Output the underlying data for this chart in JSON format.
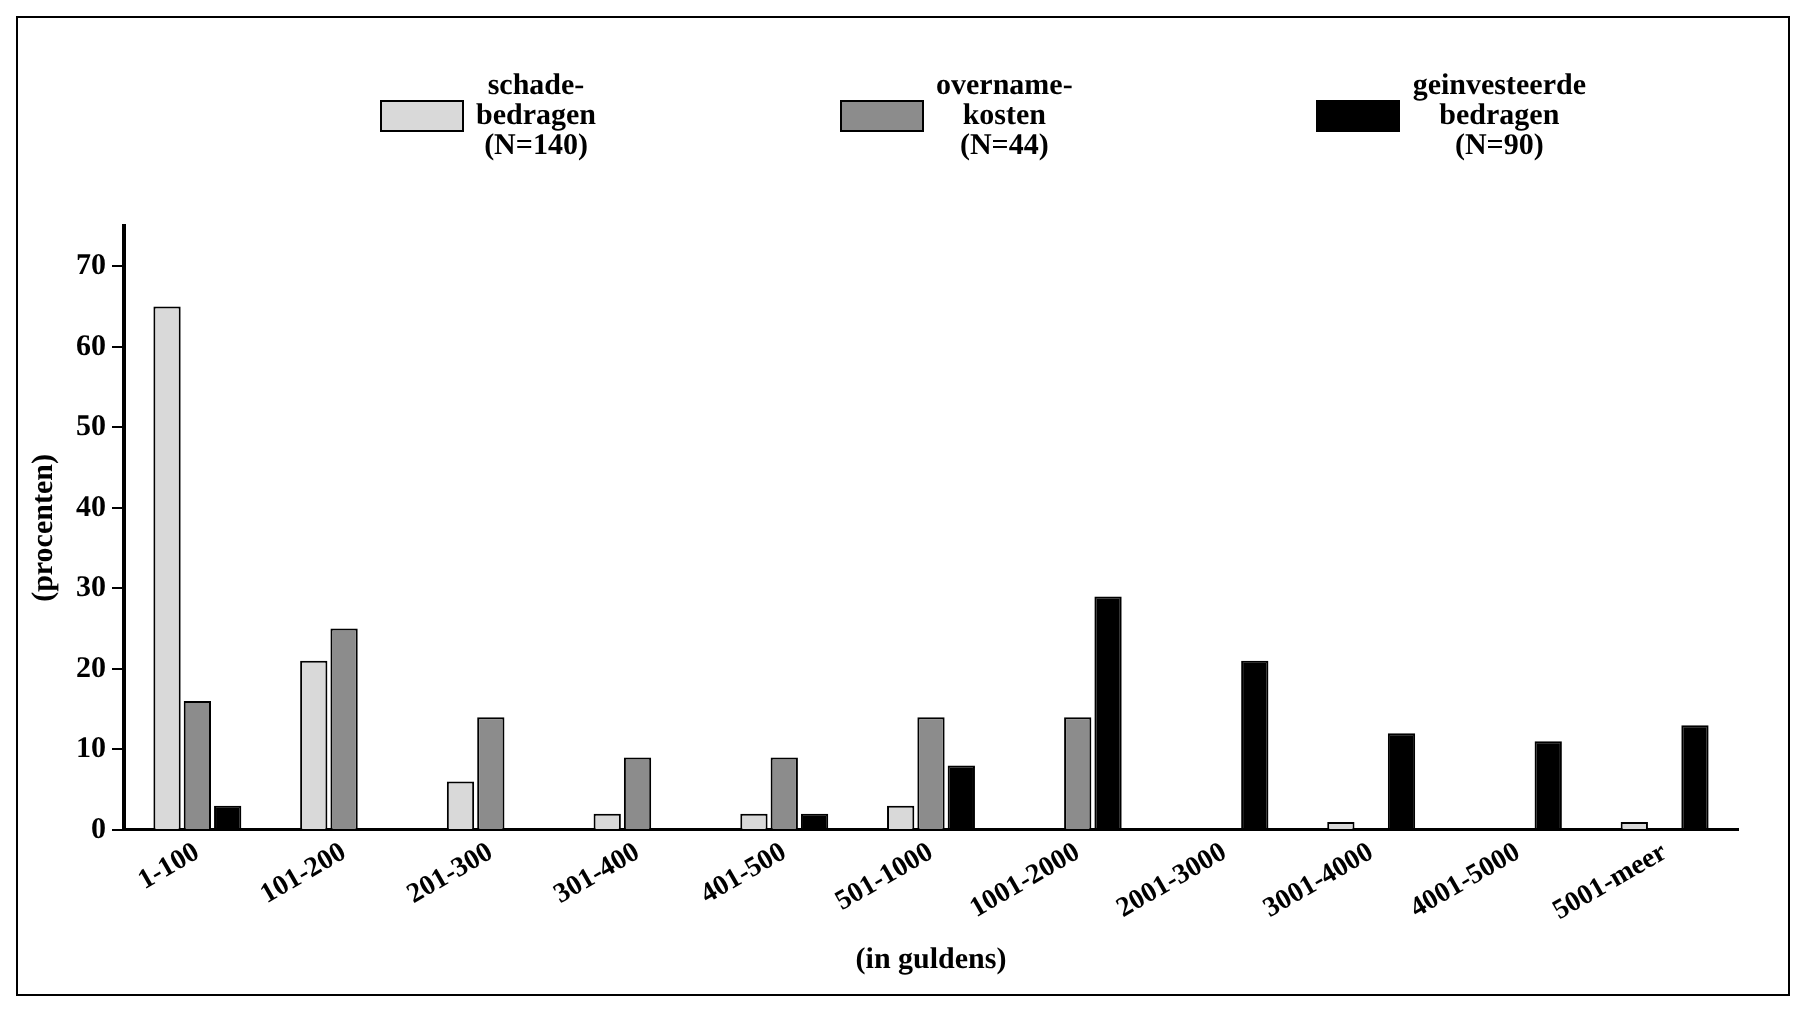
{
  "chart_data": {
    "type": "bar",
    "xlabel": "(in guldens)",
    "ylabel": "(procenten)",
    "categories": [
      "1-100",
      "101-200",
      "201-300",
      "301-400",
      "401-500",
      "501-1000",
      "1001-2000",
      "2001-3000",
      "3001-4000",
      "4001-5000",
      "5001-meer"
    ],
    "series": [
      {
        "name": "schade-\nbedragen\n(N=140)",
        "color": "#d9d9d9",
        "values": [
          65,
          21,
          6,
          2,
          2,
          3,
          0,
          0,
          1,
          0,
          1
        ]
      },
      {
        "name": "overname-\nkosten\n(N=44)",
        "color": "#8c8c8c",
        "values": [
          16,
          25,
          14,
          9,
          9,
          14,
          14,
          0,
          0,
          0,
          0
        ]
      },
      {
        "name": "geinvesteerde\nbedragen\n(N=90)",
        "color": "#000000",
        "values": [
          3,
          0,
          0,
          0,
          2,
          8,
          29,
          21,
          12,
          11,
          13
        ]
      }
    ],
    "ylim": [
      0,
      75
    ],
    "yticks": [
      0,
      10,
      20,
      30,
      40,
      50,
      60,
      70
    ],
    "grid": false,
    "legend": "top"
  }
}
